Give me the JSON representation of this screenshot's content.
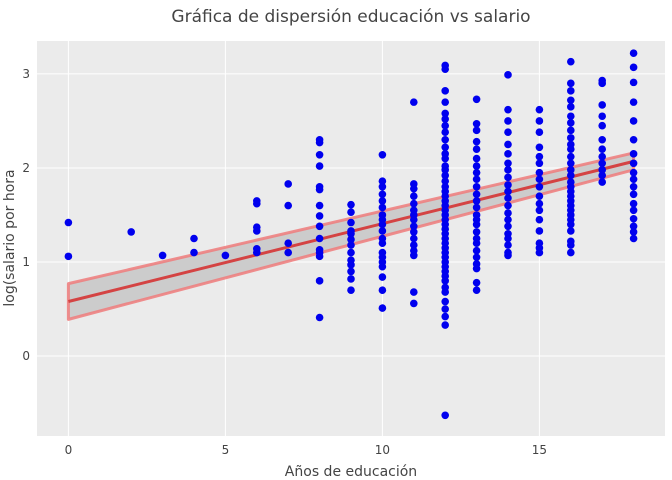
{
  "chart_data": {
    "type": "scatter",
    "title": "Gráfica de dispersión educación vs salario",
    "xlabel": "Años de educación",
    "ylabel": "log(salario por hora",
    "xlim": [
      -1,
      19
    ],
    "ylim": [
      -0.85,
      3.35
    ],
    "xticks": [
      0,
      5,
      10,
      15
    ],
    "yticks": [
      0,
      1,
      2,
      3
    ],
    "grid": true,
    "colors": {
      "points": "#0000ee",
      "fit_line": "#d44343",
      "band_fill": "#cccccc",
      "band_edge": "#ee7b7b",
      "panel": "#ebebeb",
      "grid": "#ffffff"
    },
    "points": [
      [
        0,
        1.42
      ],
      [
        0,
        1.06
      ],
      [
        2,
        1.32
      ],
      [
        3,
        1.07
      ],
      [
        4,
        1.25
      ],
      [
        4,
        1.1
      ],
      [
        5,
        1.07
      ],
      [
        6,
        1.65
      ],
      [
        6,
        1.62
      ],
      [
        6,
        1.37
      ],
      [
        6,
        1.33
      ],
      [
        6,
        1.14
      ],
      [
        6,
        1.1
      ],
      [
        7,
        1.83
      ],
      [
        7,
        1.6
      ],
      [
        7,
        1.2
      ],
      [
        7,
        1.1
      ],
      [
        8,
        2.3
      ],
      [
        8,
        2.27
      ],
      [
        8,
        2.14
      ],
      [
        8,
        2.02
      ],
      [
        8,
        1.8
      ],
      [
        8,
        1.77
      ],
      [
        8,
        1.6
      ],
      [
        8,
        1.49
      ],
      [
        8,
        1.38
      ],
      [
        8,
        1.25
      ],
      [
        8,
        1.13
      ],
      [
        8,
        1.1
      ],
      [
        8,
        1.06
      ],
      [
        8,
        0.8
      ],
      [
        8,
        0.41
      ],
      [
        9,
        1.61
      ],
      [
        9,
        1.53
      ],
      [
        9,
        1.42
      ],
      [
        9,
        1.33
      ],
      [
        9,
        1.3
      ],
      [
        9,
        1.24
      ],
      [
        9,
        1.18
      ],
      [
        9,
        1.1
      ],
      [
        9,
        1.02
      ],
      [
        9,
        0.97
      ],
      [
        9,
        0.9
      ],
      [
        9,
        0.82
      ],
      [
        9,
        0.7
      ],
      [
        10,
        2.14
      ],
      [
        10,
        1.86
      ],
      [
        10,
        1.8
      ],
      [
        10,
        1.72
      ],
      [
        10,
        1.65
      ],
      [
        10,
        1.58
      ],
      [
        10,
        1.5
      ],
      [
        10,
        1.45
      ],
      [
        10,
        1.4
      ],
      [
        10,
        1.33
      ],
      [
        10,
        1.25
      ],
      [
        10,
        1.2
      ],
      [
        10,
        1.1
      ],
      [
        10,
        1.05
      ],
      [
        10,
        1.0
      ],
      [
        10,
        0.95
      ],
      [
        10,
        0.84
      ],
      [
        10,
        0.7
      ],
      [
        10,
        0.51
      ],
      [
        11,
        2.7
      ],
      [
        11,
        1.83
      ],
      [
        11,
        1.78
      ],
      [
        11,
        1.7
      ],
      [
        11,
        1.62
      ],
      [
        11,
        1.55
      ],
      [
        11,
        1.5
      ],
      [
        11,
        1.45
      ],
      [
        11,
        1.38
      ],
      [
        11,
        1.32
      ],
      [
        11,
        1.25
      ],
      [
        11,
        1.18
      ],
      [
        11,
        1.12
      ],
      [
        11,
        1.07
      ],
      [
        11,
        0.68
      ],
      [
        11,
        0.56
      ],
      [
        12,
        3.09
      ],
      [
        12,
        3.05
      ],
      [
        12,
        2.82
      ],
      [
        12,
        2.7
      ],
      [
        12,
        2.58
      ],
      [
        12,
        2.52
      ],
      [
        12,
        2.45
      ],
      [
        12,
        2.38
      ],
      [
        12,
        2.3
      ],
      [
        12,
        2.22
      ],
      [
        12,
        2.15
      ],
      [
        12,
        2.1
      ],
      [
        12,
        2.02
      ],
      [
        12,
        1.98
      ],
      [
        12,
        1.92
      ],
      [
        12,
        1.86
      ],
      [
        12,
        1.8
      ],
      [
        12,
        1.75
      ],
      [
        12,
        1.7
      ],
      [
        12,
        1.65
      ],
      [
        12,
        1.6
      ],
      [
        12,
        1.55
      ],
      [
        12,
        1.5
      ],
      [
        12,
        1.45
      ],
      [
        12,
        1.4
      ],
      [
        12,
        1.35
      ],
      [
        12,
        1.3
      ],
      [
        12,
        1.25
      ],
      [
        12,
        1.2
      ],
      [
        12,
        1.15
      ],
      [
        12,
        1.1
      ],
      [
        12,
        1.05
      ],
      [
        12,
        1.0
      ],
      [
        12,
        0.95
      ],
      [
        12,
        0.9
      ],
      [
        12,
        0.85
      ],
      [
        12,
        0.8
      ],
      [
        12,
        0.73
      ],
      [
        12,
        0.68
      ],
      [
        12,
        0.58
      ],
      [
        12,
        0.5
      ],
      [
        12,
        0.42
      ],
      [
        12,
        0.33
      ],
      [
        12,
        -0.63
      ],
      [
        13,
        2.73
      ],
      [
        13,
        2.47
      ],
      [
        13,
        2.4
      ],
      [
        13,
        2.28
      ],
      [
        13,
        2.2
      ],
      [
        13,
        2.1
      ],
      [
        13,
        2.02
      ],
      [
        13,
        1.95
      ],
      [
        13,
        1.88
      ],
      [
        13,
        1.8
      ],
      [
        13,
        1.72
      ],
      [
        13,
        1.65
      ],
      [
        13,
        1.58
      ],
      [
        13,
        1.5
      ],
      [
        13,
        1.45
      ],
      [
        13,
        1.4
      ],
      [
        13,
        1.32
      ],
      [
        13,
        1.25
      ],
      [
        13,
        1.2
      ],
      [
        13,
        1.12
      ],
      [
        13,
        1.05
      ],
      [
        13,
        0.98
      ],
      [
        13,
        0.93
      ],
      [
        13,
        0.78
      ],
      [
        13,
        0.7
      ],
      [
        14,
        2.99
      ],
      [
        14,
        2.62
      ],
      [
        14,
        2.5
      ],
      [
        14,
        2.38
      ],
      [
        14,
        2.25
      ],
      [
        14,
        2.15
      ],
      [
        14,
        2.05
      ],
      [
        14,
        1.98
      ],
      [
        14,
        1.9
      ],
      [
        14,
        1.82
      ],
      [
        14,
        1.75
      ],
      [
        14,
        1.68
      ],
      [
        14,
        1.6
      ],
      [
        14,
        1.52
      ],
      [
        14,
        1.45
      ],
      [
        14,
        1.38
      ],
      [
        14,
        1.3
      ],
      [
        14,
        1.25
      ],
      [
        14,
        1.18
      ],
      [
        14,
        1.1
      ],
      [
        14,
        1.07
      ],
      [
        15,
        2.62
      ],
      [
        15,
        2.5
      ],
      [
        15,
        2.38
      ],
      [
        15,
        2.22
      ],
      [
        15,
        2.12
      ],
      [
        15,
        2.05
      ],
      [
        15,
        1.95
      ],
      [
        15,
        1.88
      ],
      [
        15,
        1.8
      ],
      [
        15,
        1.7
      ],
      [
        15,
        1.62
      ],
      [
        15,
        1.55
      ],
      [
        15,
        1.45
      ],
      [
        15,
        1.33
      ],
      [
        15,
        1.2
      ],
      [
        15,
        1.15
      ],
      [
        15,
        1.1
      ],
      [
        16,
        3.13
      ],
      [
        16,
        2.9
      ],
      [
        16,
        2.82
      ],
      [
        16,
        2.72
      ],
      [
        16,
        2.65
      ],
      [
        16,
        2.55
      ],
      [
        16,
        2.48
      ],
      [
        16,
        2.4
      ],
      [
        16,
        2.32
      ],
      [
        16,
        2.25
      ],
      [
        16,
        2.2
      ],
      [
        16,
        2.12
      ],
      [
        16,
        2.05
      ],
      [
        16,
        1.98
      ],
      [
        16,
        1.92
      ],
      [
        16,
        1.85
      ],
      [
        16,
        1.8
      ],
      [
        16,
        1.75
      ],
      [
        16,
        1.7
      ],
      [
        16,
        1.65
      ],
      [
        16,
        1.6
      ],
      [
        16,
        1.55
      ],
      [
        16,
        1.5
      ],
      [
        16,
        1.45
      ],
      [
        16,
        1.4
      ],
      [
        16,
        1.33
      ],
      [
        16,
        1.22
      ],
      [
        16,
        1.18
      ],
      [
        16,
        1.1
      ],
      [
        17,
        2.93
      ],
      [
        17,
        2.9
      ],
      [
        17,
        2.67
      ],
      [
        17,
        2.55
      ],
      [
        17,
        2.45
      ],
      [
        17,
        2.3
      ],
      [
        17,
        2.2
      ],
      [
        17,
        2.12
      ],
      [
        17,
        2.05
      ],
      [
        17,
        1.98
      ],
      [
        17,
        1.92
      ],
      [
        17,
        1.85
      ],
      [
        18,
        3.22
      ],
      [
        18,
        3.07
      ],
      [
        18,
        2.91
      ],
      [
        18,
        2.7
      ],
      [
        18,
        2.5
      ],
      [
        18,
        2.3
      ],
      [
        18,
        2.15
      ],
      [
        18,
        2.05
      ],
      [
        18,
        1.95
      ],
      [
        18,
        1.88
      ],
      [
        18,
        1.8
      ],
      [
        18,
        1.72
      ],
      [
        18,
        1.62
      ],
      [
        18,
        1.55
      ],
      [
        18,
        1.46
      ],
      [
        18,
        1.38
      ],
      [
        18,
        1.32
      ],
      [
        18,
        1.25
      ]
    ],
    "fit": {
      "x": [
        0,
        18
      ],
      "y": [
        0.58,
        2.07
      ]
    },
    "band": {
      "x": [
        0,
        18
      ],
      "lower": [
        0.39,
        1.98
      ],
      "upper": [
        0.77,
        2.16
      ]
    }
  }
}
